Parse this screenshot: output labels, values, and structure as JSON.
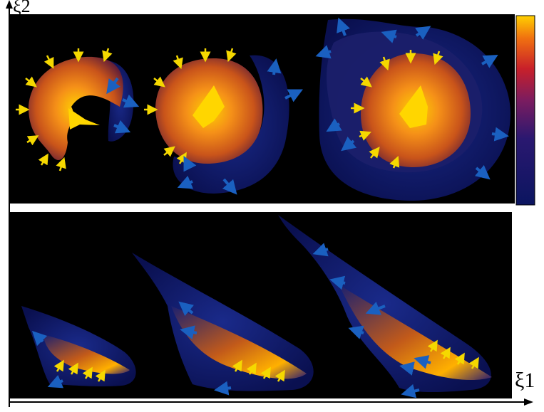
{
  "axes": {
    "y_label": "ξ2",
    "x_label": "ξ1"
  },
  "colorbar": {
    "max_label": "+",
    "min_label": "-",
    "colors": [
      "#0b1560",
      "#2a1870",
      "#7a1c60",
      "#c8202a",
      "#f07010",
      "#ffd000"
    ]
  },
  "arrow_colors": {
    "inward": "#f5d800",
    "outward": "#1a60c0"
  }
}
